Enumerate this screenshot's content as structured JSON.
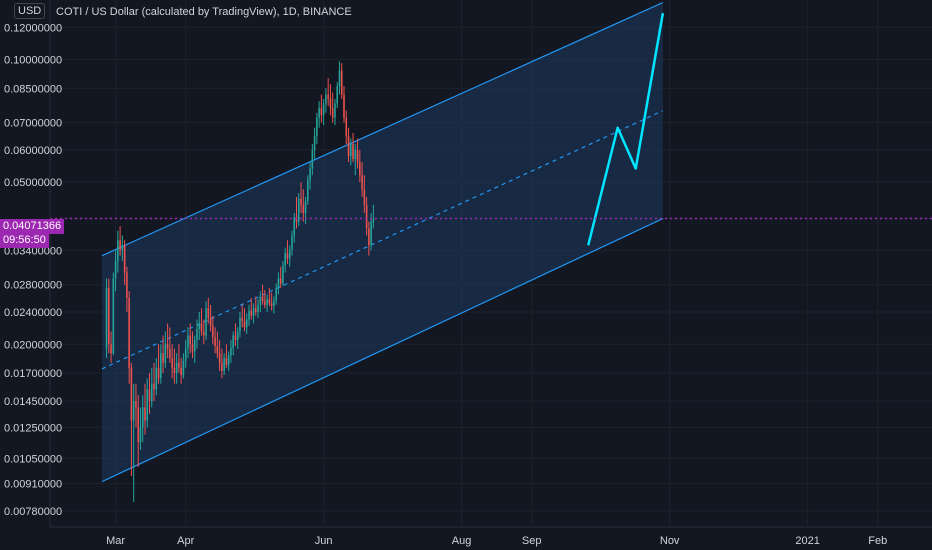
{
  "header": {
    "symbol_title": "COTI / US Dollar (calculated by TradingView), 1D, BINANCE",
    "unit_label": "USD"
  },
  "price_axis": {
    "current_price_label": "0.04071366",
    "countdown_label": "09:56:50"
  },
  "colors": {
    "background": "#131722",
    "up_candle": "#26a69a",
    "down_candle": "#ef5350",
    "channel_line": "#2196f3",
    "channel_fill": "#1e3a5f",
    "projection_line": "#00e5ff",
    "price_line": "#9c27b0"
  },
  "chart_data": {
    "type": "candlestick",
    "title": "COTI / US Dollar (calculated by TradingView), 1D, BINANCE",
    "y_scale": "log",
    "ylim": [
      0.0072,
      0.14
    ],
    "y_ticks": [
      "0.12000000",
      "0.10000000",
      "0.08500000",
      "0.07000000",
      "0.06000000",
      "0.05000000",
      "0.04071366",
      "0.03400000",
      "0.02800000",
      "0.02400000",
      "0.02000000",
      "0.01700000",
      "0.01450000",
      "0.01250000",
      "0.01050000",
      "0.00910000",
      "0.00780000"
    ],
    "y_tick_values": [
      0.12,
      0.1,
      0.085,
      0.07,
      0.06,
      0.05,
      0.04071366,
      0.034,
      0.028,
      0.024,
      0.02,
      0.017,
      0.0145,
      0.0125,
      0.0105,
      0.0091,
      0.0078
    ],
    "x_start": "2020-02-01",
    "x_end": "2021-02-25",
    "x_ticks": [
      {
        "label": "Mar",
        "date": "2020-03-01"
      },
      {
        "label": "Apr",
        "date": "2020-04-01"
      },
      {
        "label": "Jun",
        "date": "2020-06-01"
      },
      {
        "label": "Aug",
        "date": "2020-08-01"
      },
      {
        "label": "Sep",
        "date": "2020-09-01"
      },
      {
        "label": "Nov",
        "date": "2020-11-01"
      },
      {
        "label": "2021",
        "date": "2021-01-01"
      },
      {
        "label": "Feb",
        "date": "2021-02-01"
      }
    ],
    "series": [
      {
        "type": "candlestick",
        "first_date": "2020-02-26",
        "ohlc": [
          [
            0.0195,
            0.029,
            0.0185,
            0.0275
          ],
          [
            0.0275,
            0.029,
            0.019,
            0.02
          ],
          [
            0.02,
            0.0215,
            0.018,
            0.019
          ],
          [
            0.019,
            0.03,
            0.0188,
            0.029
          ],
          [
            0.029,
            0.034,
            0.027,
            0.032
          ],
          [
            0.032,
            0.038,
            0.03,
            0.036
          ],
          [
            0.036,
            0.039,
            0.033,
            0.034
          ],
          [
            0.034,
            0.037,
            0.032,
            0.035
          ],
          [
            0.035,
            0.036,
            0.028,
            0.03
          ],
          [
            0.03,
            0.031,
            0.024,
            0.026
          ],
          [
            0.026,
            0.027,
            0.016,
            0.0175
          ],
          [
            0.0175,
            0.018,
            0.0095,
            0.013
          ],
          [
            0.013,
            0.016,
            0.0082,
            0.0145
          ],
          [
            0.0145,
            0.016,
            0.0125,
            0.014
          ],
          [
            0.014,
            0.015,
            0.01,
            0.0115
          ],
          [
            0.0115,
            0.014,
            0.011,
            0.0125
          ],
          [
            0.0125,
            0.015,
            0.0115,
            0.014
          ],
          [
            0.014,
            0.016,
            0.012,
            0.013
          ],
          [
            0.013,
            0.0165,
            0.0125,
            0.0155
          ],
          [
            0.0155,
            0.017,
            0.0135,
            0.0145
          ],
          [
            0.0145,
            0.0175,
            0.014,
            0.016
          ],
          [
            0.016,
            0.018,
            0.0145,
            0.0155
          ],
          [
            0.0155,
            0.0185,
            0.015,
            0.0175
          ],
          [
            0.0175,
            0.02,
            0.016,
            0.0165
          ],
          [
            0.0165,
            0.02,
            0.016,
            0.019
          ],
          [
            0.019,
            0.021,
            0.017,
            0.018
          ],
          [
            0.018,
            0.0215,
            0.0175,
            0.02
          ],
          [
            0.02,
            0.0225,
            0.0185,
            0.0195
          ],
          [
            0.0195,
            0.022,
            0.018,
            0.0185
          ],
          [
            0.0185,
            0.02,
            0.0165,
            0.0175
          ],
          [
            0.0175,
            0.0195,
            0.016,
            0.017
          ],
          [
            0.017,
            0.019,
            0.016,
            0.018
          ],
          [
            0.018,
            0.02,
            0.017,
            0.0175
          ],
          [
            0.0175,
            0.0185,
            0.016,
            0.0168
          ],
          [
            0.0168,
            0.019,
            0.0165,
            0.0182
          ],
          [
            0.0182,
            0.0205,
            0.0175,
            0.0195
          ],
          [
            0.0195,
            0.022,
            0.0185,
            0.021
          ],
          [
            0.021,
            0.0225,
            0.019,
            0.02
          ],
          [
            0.02,
            0.0215,
            0.0185,
            0.0192
          ],
          [
            0.0192,
            0.021,
            0.018,
            0.0205
          ],
          [
            0.0205,
            0.023,
            0.0195,
            0.0218
          ],
          [
            0.0218,
            0.024,
            0.0205,
            0.0225
          ],
          [
            0.0225,
            0.0245,
            0.021,
            0.0215
          ],
          [
            0.0215,
            0.023,
            0.02,
            0.021
          ],
          [
            0.021,
            0.0255,
            0.0205,
            0.0245
          ],
          [
            0.0245,
            0.026,
            0.0225,
            0.0232
          ],
          [
            0.0232,
            0.025,
            0.0215,
            0.0222
          ],
          [
            0.0222,
            0.0235,
            0.02,
            0.0208
          ],
          [
            0.0208,
            0.022,
            0.019,
            0.0198
          ],
          [
            0.0198,
            0.0215,
            0.0185,
            0.019
          ],
          [
            0.019,
            0.0205,
            0.0172,
            0.018
          ],
          [
            0.018,
            0.0195,
            0.0165,
            0.0172
          ],
          [
            0.0172,
            0.019,
            0.0168,
            0.0185
          ],
          [
            0.0185,
            0.02,
            0.0175,
            0.0178
          ],
          [
            0.0178,
            0.0192,
            0.0172,
            0.0188
          ],
          [
            0.0188,
            0.0205,
            0.018,
            0.0196
          ],
          [
            0.0196,
            0.0215,
            0.0188,
            0.021
          ],
          [
            0.021,
            0.0225,
            0.0198,
            0.0205
          ],
          [
            0.0205,
            0.022,
            0.0195,
            0.0215
          ],
          [
            0.0215,
            0.024,
            0.0208,
            0.0232
          ],
          [
            0.0232,
            0.025,
            0.022,
            0.0228
          ],
          [
            0.0228,
            0.0245,
            0.0215,
            0.022
          ],
          [
            0.022,
            0.0238,
            0.0212,
            0.023
          ],
          [
            0.023,
            0.025,
            0.0222,
            0.0242
          ],
          [
            0.0242,
            0.026,
            0.023,
            0.0235
          ],
          [
            0.0235,
            0.0252,
            0.0225,
            0.0245
          ],
          [
            0.0245,
            0.0262,
            0.0235,
            0.024
          ],
          [
            0.024,
            0.0258,
            0.0232,
            0.025
          ],
          [
            0.025,
            0.027,
            0.024,
            0.0262
          ],
          [
            0.0262,
            0.028,
            0.025,
            0.0255
          ],
          [
            0.0255,
            0.0272,
            0.0245,
            0.025
          ],
          [
            0.025,
            0.0265,
            0.024,
            0.0258
          ],
          [
            0.0258,
            0.0275,
            0.0248,
            0.0252
          ],
          [
            0.0252,
            0.0268,
            0.0242,
            0.0248
          ],
          [
            0.0248,
            0.0262,
            0.0238,
            0.0256
          ],
          [
            0.0256,
            0.0282,
            0.025,
            0.0275
          ],
          [
            0.0275,
            0.03,
            0.0265,
            0.029
          ],
          [
            0.029,
            0.031,
            0.0275,
            0.0282
          ],
          [
            0.0282,
            0.032,
            0.0278,
            0.0312
          ],
          [
            0.0312,
            0.0345,
            0.03,
            0.0335
          ],
          [
            0.0335,
            0.036,
            0.0315,
            0.0325
          ],
          [
            0.0325,
            0.035,
            0.031,
            0.0342
          ],
          [
            0.0342,
            0.038,
            0.033,
            0.037
          ],
          [
            0.037,
            0.042,
            0.0355,
            0.041
          ],
          [
            0.041,
            0.046,
            0.0385,
            0.04
          ],
          [
            0.04,
            0.047,
            0.039,
            0.0455
          ],
          [
            0.0455,
            0.05,
            0.042,
            0.044
          ],
          [
            0.044,
            0.048,
            0.04,
            0.042
          ],
          [
            0.042,
            0.046,
            0.0395,
            0.045
          ],
          [
            0.045,
            0.052,
            0.044,
            0.0505
          ],
          [
            0.0505,
            0.056,
            0.048,
            0.054
          ],
          [
            0.054,
            0.062,
            0.052,
            0.06
          ],
          [
            0.06,
            0.068,
            0.057,
            0.065
          ],
          [
            0.065,
            0.074,
            0.062,
            0.072
          ],
          [
            0.072,
            0.079,
            0.068,
            0.076
          ],
          [
            0.076,
            0.082,
            0.07,
            0.073
          ],
          [
            0.073,
            0.08,
            0.069,
            0.078
          ],
          [
            0.078,
            0.085,
            0.074,
            0.082
          ],
          [
            0.082,
            0.09,
            0.077,
            0.08
          ],
          [
            0.08,
            0.087,
            0.073,
            0.076
          ],
          [
            0.076,
            0.083,
            0.07,
            0.072
          ],
          [
            0.072,
            0.08,
            0.069,
            0.078
          ],
          [
            0.078,
            0.088,
            0.076,
            0.086
          ],
          [
            0.086,
            0.099,
            0.082,
            0.094
          ],
          [
            0.094,
            0.098,
            0.08,
            0.082
          ],
          [
            0.082,
            0.086,
            0.07,
            0.072
          ],
          [
            0.072,
            0.075,
            0.062,
            0.065
          ],
          [
            0.065,
            0.068,
            0.056,
            0.058
          ],
          [
            0.058,
            0.064,
            0.055,
            0.062
          ],
          [
            0.062,
            0.066,
            0.056,
            0.057
          ],
          [
            0.057,
            0.062,
            0.052,
            0.06
          ],
          [
            0.06,
            0.064,
            0.054,
            0.056
          ],
          [
            0.056,
            0.06,
            0.05,
            0.052
          ],
          [
            0.052,
            0.056,
            0.046,
            0.048
          ],
          [
            0.048,
            0.052,
            0.042,
            0.044
          ],
          [
            0.044,
            0.046,
            0.037,
            0.0385
          ],
          [
            0.0385,
            0.04,
            0.033,
            0.035
          ],
          [
            0.035,
            0.042,
            0.034,
            0.04
          ],
          [
            0.04,
            0.044,
            0.0385,
            0.0407
          ]
        ]
      },
      {
        "type": "channel",
        "lower": [
          [
            "2020-02-24",
            0.0092
          ],
          [
            "2020-10-29",
            0.0407
          ]
        ],
        "upper": [
          [
            "2020-02-24",
            0.033
          ],
          [
            "2020-10-29",
            0.138
          ]
        ],
        "midline": [
          [
            "2020-02-24",
            0.0174
          ],
          [
            "2020-10-29",
            0.0749
          ]
        ]
      },
      {
        "type": "projection",
        "points": [
          [
            "2020-09-26",
            0.035
          ],
          [
            "2020-10-09",
            0.068
          ],
          [
            "2020-10-17",
            0.054
          ],
          [
            "2020-10-29",
            0.13
          ]
        ]
      },
      {
        "type": "price_line",
        "value": 0.04071366
      }
    ]
  }
}
